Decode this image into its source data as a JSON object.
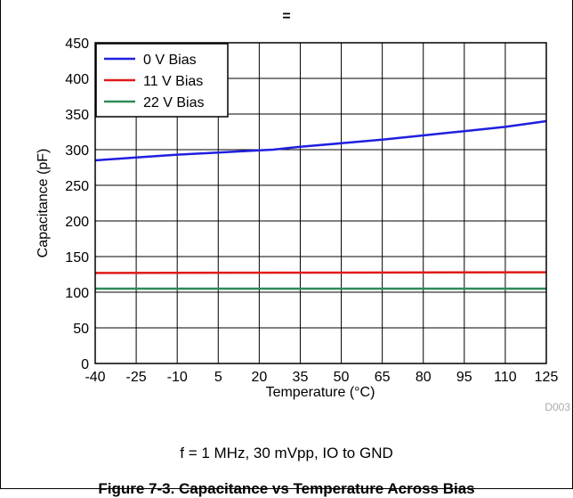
{
  "header_mark": "=",
  "chart_data": {
    "type": "line",
    "xlabel": "Temperature (°C)",
    "ylabel": "Capacitance (pF)",
    "x_ticks": [
      "-40",
      "-25",
      "-10",
      "5",
      "20",
      "35",
      "50",
      "65",
      "80",
      "95",
      "110",
      "125"
    ],
    "y_ticks": [
      "0",
      "50",
      "100",
      "150",
      "200",
      "250",
      "300",
      "350",
      "400",
      "450"
    ],
    "xlim": [
      -40,
      125
    ],
    "ylim": [
      0,
      450
    ],
    "grid": true,
    "legend_position": "top-left",
    "figure_code": "D003",
    "series": [
      {
        "name": "0 V Bias",
        "color": "#1f1fe0",
        "x": [
          -40,
          -25,
          -10,
          5,
          20,
          25,
          35,
          50,
          65,
          80,
          95,
          110,
          125
        ],
        "y": [
          285,
          289,
          293,
          296,
          299,
          300,
          304,
          309,
          314,
          320,
          326,
          332,
          340
        ]
      },
      {
        "name": "11 V Bias",
        "color": "#e01a1a",
        "x": [
          -40,
          125
        ],
        "y": [
          127,
          128
        ]
      },
      {
        "name": "22 V Bias",
        "color": "#2e8b57",
        "x": [
          -40,
          125
        ],
        "y": [
          105,
          105
        ]
      }
    ]
  },
  "conditions": "f = 1 MHz, 30 mVpp, IO to GND",
  "figure_caption": "Figure 7-3. Capacitance vs Temperature Across Bias"
}
